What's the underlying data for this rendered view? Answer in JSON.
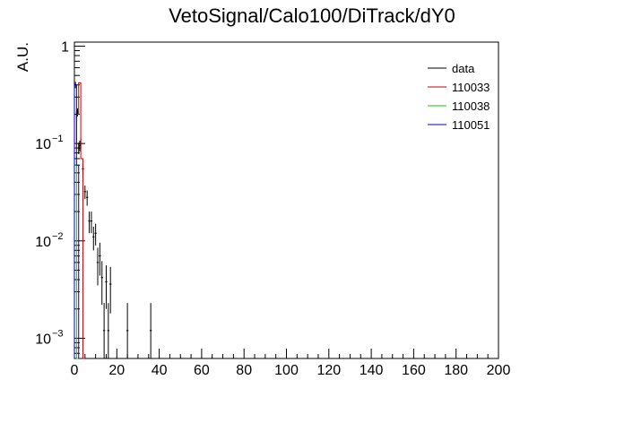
{
  "chart_data": {
    "type": "line",
    "title": "VetoSignal/Calo100/DiTrack/dY0",
    "xlabel": "",
    "ylabel": "A.U.",
    "xlim": [
      0,
      200
    ],
    "ylim": [
      0.00062,
      1.1
    ],
    "yscale": "log",
    "grid": false,
    "legend_position": "top-right",
    "x_ticks": [
      "0",
      "20",
      "40",
      "60",
      "80",
      "100",
      "120",
      "140",
      "160",
      "180",
      "200"
    ],
    "y_ticks": [
      {
        "value": 1,
        "base": "1",
        "exp": ""
      },
      {
        "value": 0.1,
        "base": "10",
        "exp": "−1"
      },
      {
        "value": 0.01,
        "base": "10",
        "exp": "−2"
      },
      {
        "value": 0.001,
        "base": "10",
        "exp": "−3"
      }
    ],
    "series": [
      {
        "name": "data",
        "color": "#000000",
        "style": "errorbar",
        "x": [
          0.5,
          1,
          1.5,
          2,
          2.5,
          3,
          4,
          5,
          6,
          7,
          8,
          9,
          10,
          11,
          12,
          13,
          14,
          15,
          16,
          17,
          25,
          36
        ],
        "y": [
          0.4,
          0.2,
          0.21,
          0.09,
          0.095,
          0.1,
          0.055,
          0.032,
          0.028,
          0.016,
          0.016,
          0.011,
          0.012,
          0.006,
          0.007,
          0.0042,
          0.0012,
          0.0038,
          0.0012,
          0.0036,
          0.0012,
          0.0012
        ],
        "yerr": [
          0.03,
          0.02,
          0.02,
          0.012,
          0.012,
          0.012,
          0.007,
          0.005,
          0.005,
          0.004,
          0.004,
          0.003,
          0.003,
          0.0025,
          0.0026,
          0.002,
          0.0011,
          0.0018,
          0.0011,
          0.0018,
          0.0011,
          0.0011
        ]
      },
      {
        "name": "110033",
        "color": "#cc0000",
        "style": "hist",
        "x": [
          0,
          1,
          2,
          3,
          4
        ],
        "y": [
          0.1,
          0.2,
          0.42,
          0.07,
          0.0006
        ]
      },
      {
        "name": "110038",
        "color": "#00cc00",
        "style": "hist",
        "x": [
          0,
          1,
          2
        ],
        "y": [
          0.06,
          0.0006,
          0.0006
        ]
      },
      {
        "name": "110051",
        "color": "#0000cc",
        "style": "hist",
        "x": [
          0,
          1,
          2
        ],
        "y": [
          0.4,
          0.06,
          0.0006
        ]
      }
    ]
  }
}
